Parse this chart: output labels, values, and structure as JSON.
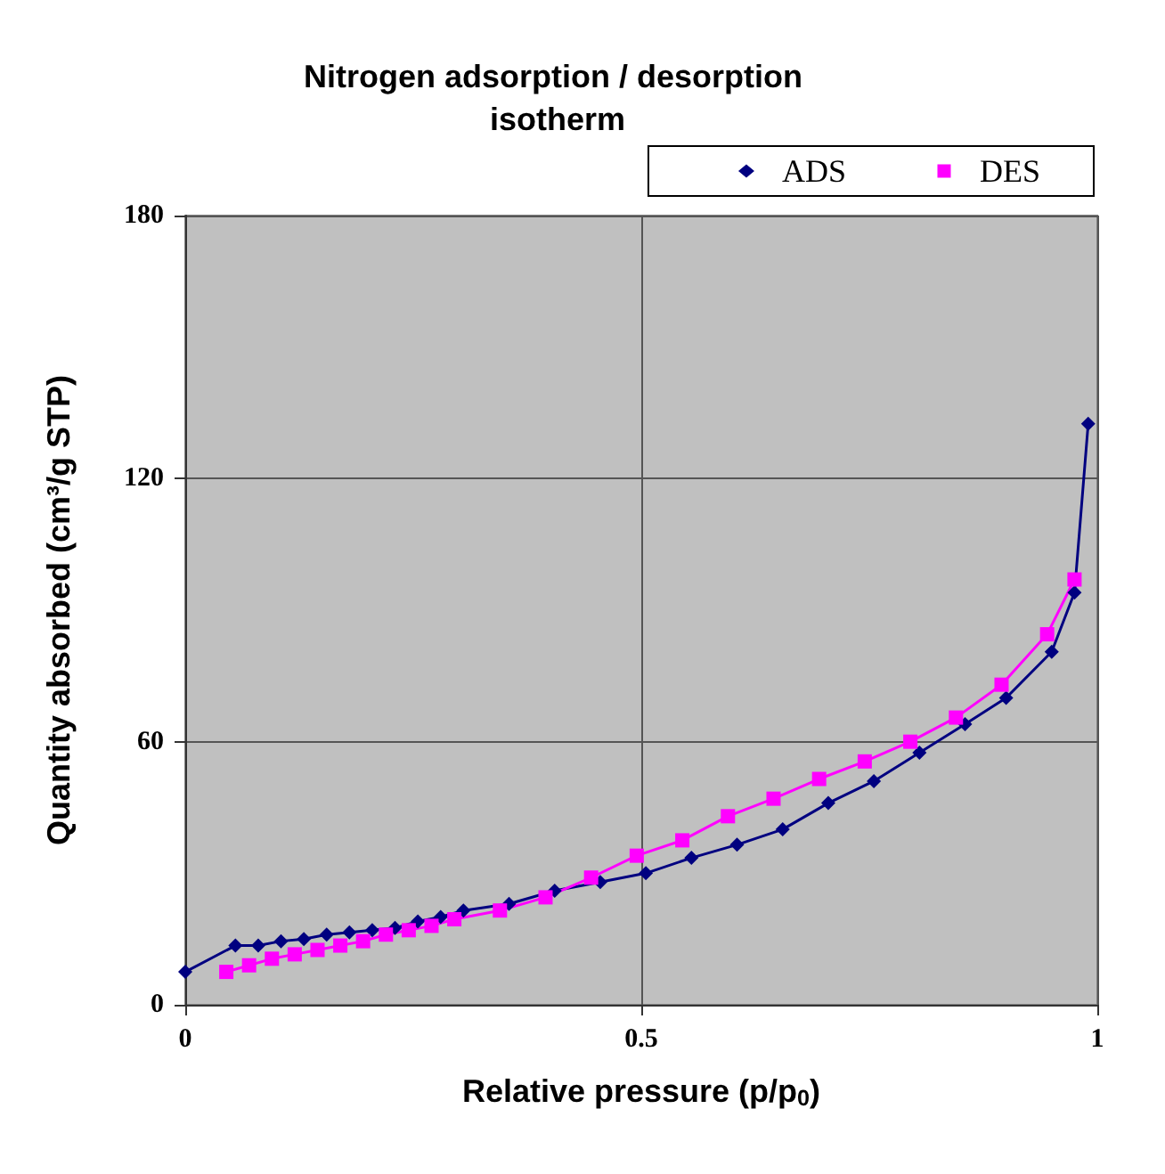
{
  "chart_data": {
    "type": "line",
    "title": "Nitrogen adsorption / desorption isotherm",
    "xlabel": "Relative pressure (p/p$_{0}$)",
    "ylabel": "Quantity absorbed (cm³/g STP)",
    "xlim": [
      0,
      1
    ],
    "xticks": [
      0,
      0.5,
      1
    ],
    "ylim": [
      0,
      180
    ],
    "yticks": [
      0,
      60,
      120,
      180
    ],
    "grid": true,
    "legend": "top right",
    "line_style": "solid",
    "series": [
      {
        "name": "ADS",
        "color": "#000080",
        "marker": "diamond",
        "x": [
          0,
          0.055,
          0.08,
          0.105,
          0.13,
          0.155,
          0.18,
          0.205,
          0.23,
          0.255,
          0.28,
          0.305,
          0.355,
          0.405,
          0.455,
          0.505,
          0.555,
          0.605,
          0.655,
          0.705,
          0.755,
          0.805,
          0.855,
          0.9,
          0.95,
          0.975,
          0.99
        ],
        "values": [
          7.5,
          13.5,
          13.5,
          14.5,
          15,
          16,
          16.5,
          17,
          17.5,
          19,
          20,
          21.5,
          23,
          26,
          28,
          30,
          33.5,
          36.5,
          40,
          46,
          51,
          57.5,
          64,
          70,
          80.5,
          94,
          132.5
        ]
      },
      {
        "name": "DES",
        "color": "#ff00ff",
        "marker": "square",
        "x": [
          0.045,
          0.07,
          0.095,
          0.12,
          0.145,
          0.17,
          0.195,
          0.22,
          0.245,
          0.27,
          0.295,
          0.345,
          0.395,
          0.445,
          0.495,
          0.545,
          0.595,
          0.645,
          0.695,
          0.745,
          0.795,
          0.845,
          0.895,
          0.945,
          0.975
        ],
        "values": [
          7.5,
          9,
          10.5,
          11.5,
          12.5,
          13.5,
          14.5,
          16,
          17,
          18,
          19.5,
          21.5,
          24.5,
          29,
          34,
          37.5,
          43,
          47,
          51.5,
          55.5,
          60,
          65.5,
          73,
          84.5,
          97
        ]
      }
    ]
  }
}
